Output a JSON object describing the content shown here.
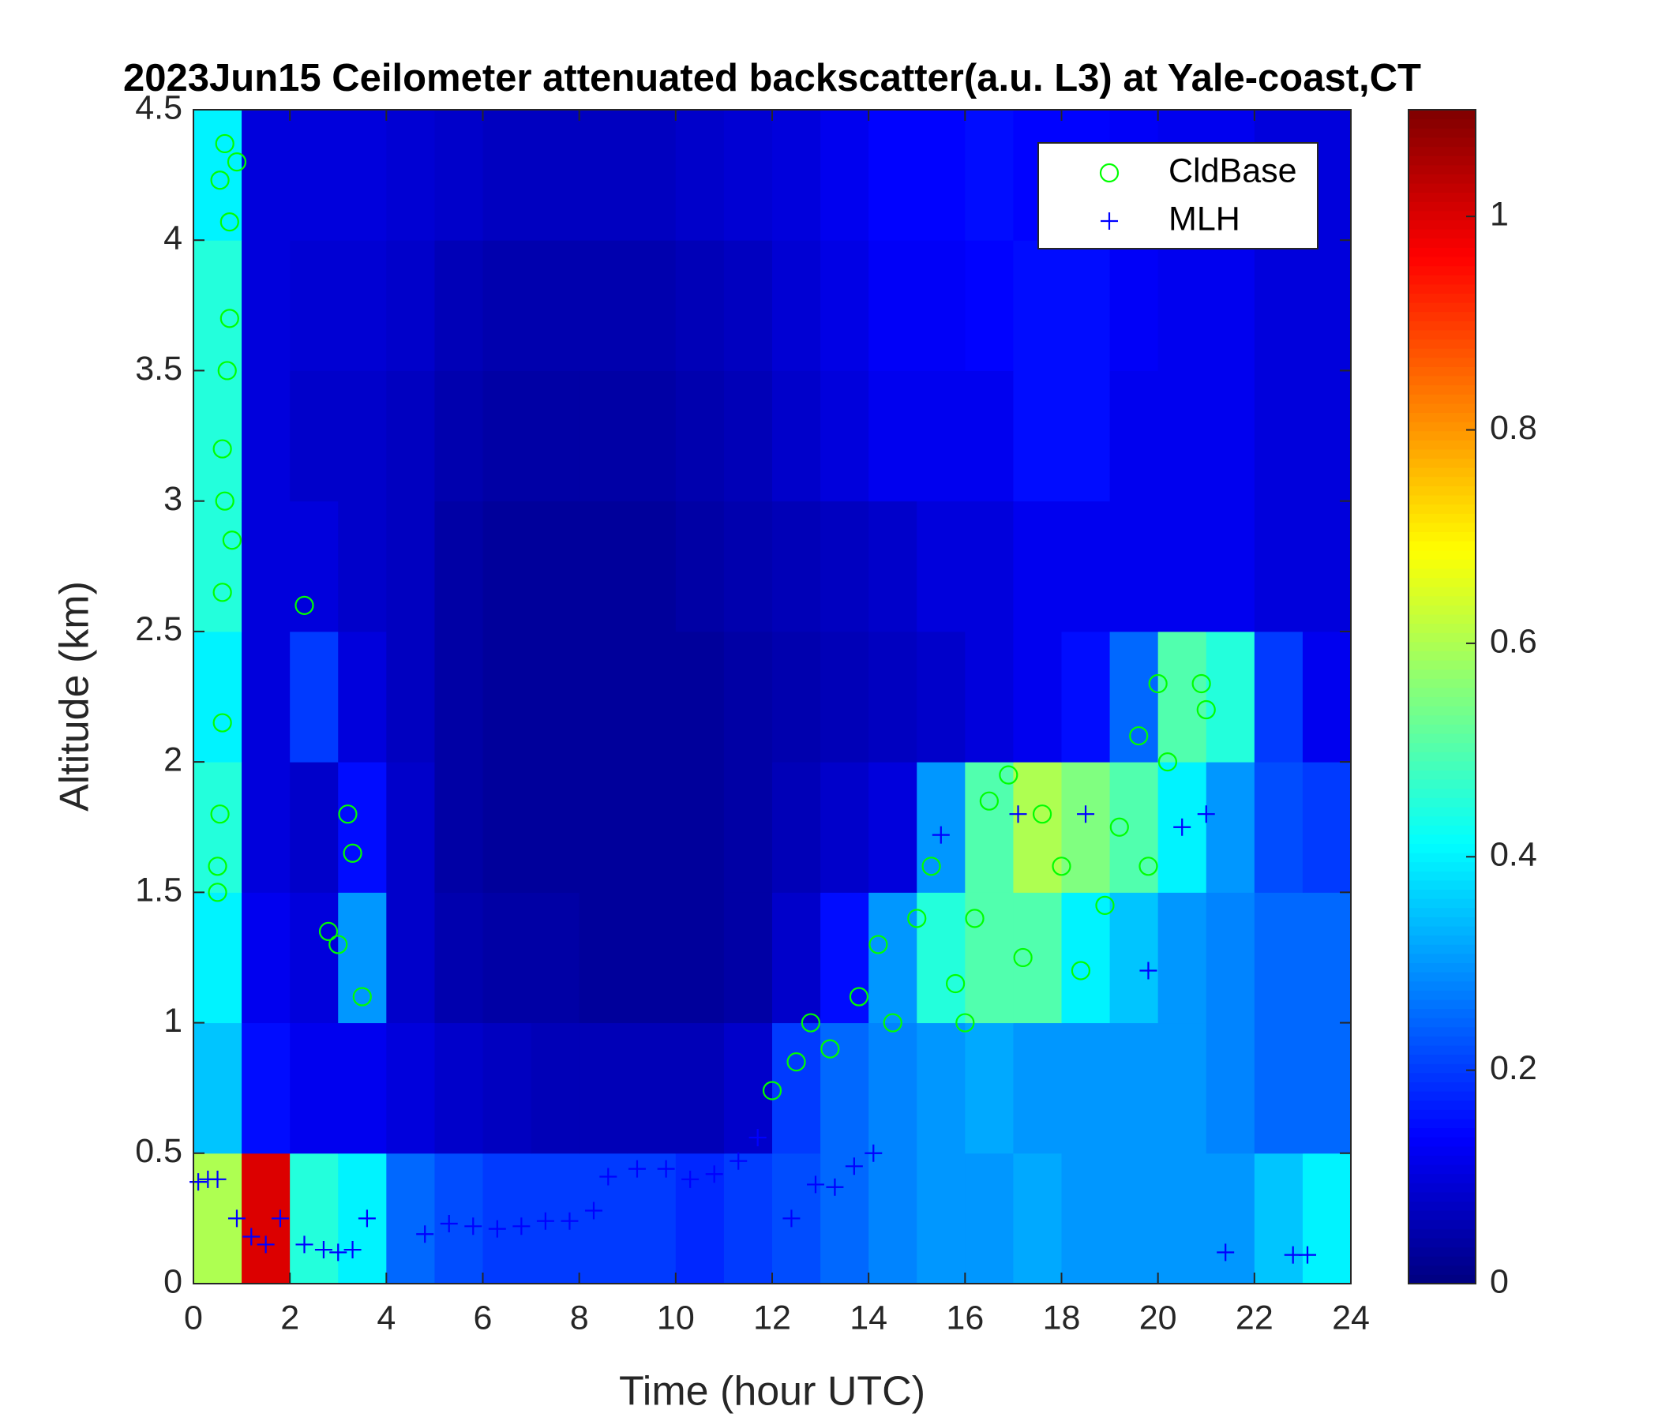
{
  "chart_data": {
    "type": "heatmap",
    "title": "2023Jun15 Ceilometer attenuated backscatter(a.u. L3) at Yale-coast,CT",
    "xlabel": "Time (hour UTC)",
    "ylabel": "Altitude (km)",
    "colormap": "jet",
    "xbins": [
      0,
      1,
      2,
      3,
      4,
      5,
      6,
      7,
      8,
      9,
      10,
      11,
      12,
      13,
      14,
      15,
      16,
      17,
      18,
      19,
      20,
      21,
      22,
      23,
      24
    ],
    "ybins": [
      0,
      0.5,
      1,
      1.5,
      2,
      2.5,
      3,
      3.5,
      4,
      4.5
    ],
    "z": [
      [
        0.6,
        1.0,
        0.45,
        0.4,
        0.25,
        0.22,
        0.2,
        0.2,
        0.2,
        0.2,
        0.18,
        0.2,
        0.22,
        0.25,
        0.28,
        0.3,
        0.3,
        0.32,
        0.3,
        0.3,
        0.3,
        0.3,
        0.35,
        0.4
      ],
      [
        0.35,
        0.15,
        0.12,
        0.12,
        0.1,
        0.08,
        0.07,
        0.06,
        0.06,
        0.06,
        0.06,
        0.08,
        0.2,
        0.25,
        0.28,
        0.3,
        0.32,
        0.3,
        0.3,
        0.3,
        0.3,
        0.28,
        0.25,
        0.25
      ],
      [
        0.4,
        0.12,
        0.1,
        0.3,
        0.08,
        0.05,
        0.04,
        0.04,
        0.03,
        0.03,
        0.03,
        0.04,
        0.08,
        0.15,
        0.3,
        0.45,
        0.5,
        0.5,
        0.4,
        0.35,
        0.3,
        0.28,
        0.25,
        0.25
      ],
      [
        0.45,
        0.1,
        0.08,
        0.15,
        0.08,
        0.04,
        0.03,
        0.03,
        0.03,
        0.03,
        0.03,
        0.04,
        0.06,
        0.08,
        0.1,
        0.3,
        0.5,
        0.6,
        0.55,
        0.5,
        0.4,
        0.3,
        0.22,
        0.2
      ],
      [
        0.4,
        0.1,
        0.2,
        0.1,
        0.07,
        0.04,
        0.03,
        0.03,
        0.03,
        0.03,
        0.03,
        0.04,
        0.05,
        0.06,
        0.07,
        0.08,
        0.1,
        0.12,
        0.15,
        0.25,
        0.5,
        0.45,
        0.2,
        0.12
      ],
      [
        0.45,
        0.1,
        0.1,
        0.08,
        0.07,
        0.04,
        0.03,
        0.03,
        0.03,
        0.03,
        0.04,
        0.05,
        0.06,
        0.07,
        0.08,
        0.1,
        0.1,
        0.12,
        0.12,
        0.12,
        0.12,
        0.12,
        0.1,
        0.1
      ],
      [
        0.45,
        0.1,
        0.08,
        0.08,
        0.07,
        0.05,
        0.04,
        0.04,
        0.04,
        0.04,
        0.05,
        0.06,
        0.08,
        0.1,
        0.12,
        0.12,
        0.12,
        0.15,
        0.15,
        0.12,
        0.12,
        0.12,
        0.1,
        0.1
      ],
      [
        0.45,
        0.1,
        0.09,
        0.09,
        0.08,
        0.06,
        0.05,
        0.05,
        0.05,
        0.05,
        0.06,
        0.07,
        0.09,
        0.11,
        0.13,
        0.13,
        0.14,
        0.15,
        0.15,
        0.13,
        0.12,
        0.12,
        0.1,
        0.1
      ],
      [
        0.4,
        0.1,
        0.1,
        0.1,
        0.09,
        0.08,
        0.07,
        0.07,
        0.07,
        0.07,
        0.08,
        0.09,
        0.1,
        0.12,
        0.14,
        0.14,
        0.15,
        0.14,
        0.14,
        0.13,
        0.12,
        0.12,
        0.1,
        0.1
      ]
    ],
    "clim": [
      0,
      1.1
    ],
    "cticks": [
      0,
      0.2,
      0.4,
      0.6,
      0.8,
      1
    ],
    "xlim": [
      0,
      24
    ],
    "xticks": [
      0,
      2,
      4,
      6,
      8,
      10,
      12,
      14,
      16,
      18,
      20,
      22,
      24
    ],
    "ylim": [
      0,
      4.5
    ],
    "yticks": [
      0,
      0.5,
      1,
      1.5,
      2,
      2.5,
      3,
      3.5,
      4,
      4.5
    ],
    "legend": "northeast",
    "series": [
      {
        "name": "CldBase",
        "marker": "circle",
        "color": "#00ff00",
        "x": [
          0.5,
          0.5,
          0.55,
          0.6,
          0.6,
          0.65,
          0.6,
          0.7,
          0.75,
          0.8,
          0.55,
          0.65,
          0.9,
          0.75,
          2.3,
          2.8,
          3.0,
          3.2,
          3.3,
          3.5,
          12,
          12.5,
          12.8,
          13.2,
          13.8,
          14.2,
          14.5,
          15,
          15.3,
          15.8,
          16,
          16.2,
          16.5,
          16.9,
          17.2,
          17.6,
          18,
          18.4,
          18.9,
          19.2,
          19.6,
          19.8,
          20,
          20.2,
          20.9,
          21
        ],
        "y": [
          1.5,
          1.6,
          1.8,
          2.15,
          2.65,
          3.0,
          3.2,
          3.5,
          3.7,
          2.85,
          4.23,
          4.37,
          4.3,
          4.07,
          2.6,
          1.35,
          1.3,
          1.8,
          1.65,
          1.1,
          0.74,
          0.85,
          1.0,
          0.9,
          1.1,
          1.3,
          1.0,
          1.4,
          1.6,
          1.15,
          1.0,
          1.4,
          1.85,
          1.95,
          1.25,
          1.8,
          1.6,
          1.2,
          1.45,
          1.75,
          2.1,
          1.6,
          2.3,
          2.0,
          2.3,
          2.2
        ]
      },
      {
        "name": "MLH",
        "marker": "plus",
        "color": "#0000ff",
        "x": [
          0.1,
          0.3,
          0.5,
          0.9,
          1.2,
          1.5,
          1.8,
          2.3,
          2.7,
          3.0,
          3.3,
          3.6,
          4.8,
          5.3,
          5.8,
          6.3,
          6.8,
          7.3,
          7.8,
          8.3,
          8.6,
          9.2,
          9.8,
          10.3,
          10.8,
          11.3,
          11.7,
          12.4,
          12.9,
          13.3,
          13.7,
          14.1,
          15.5,
          17.1,
          18.5,
          19.8,
          20.5,
          21,
          21.4,
          22.8,
          23.1
        ],
        "y": [
          0.39,
          0.4,
          0.4,
          0.25,
          0.18,
          0.15,
          0.25,
          0.15,
          0.13,
          0.12,
          0.13,
          0.25,
          0.19,
          0.23,
          0.22,
          0.21,
          0.22,
          0.24,
          0.24,
          0.28,
          0.41,
          0.44,
          0.44,
          0.4,
          0.42,
          0.47,
          0.56,
          0.25,
          0.38,
          0.37,
          0.45,
          0.5,
          1.72,
          1.8,
          1.8,
          1.2,
          1.75,
          1.8,
          0.12,
          0.11,
          0.11
        ]
      }
    ]
  }
}
